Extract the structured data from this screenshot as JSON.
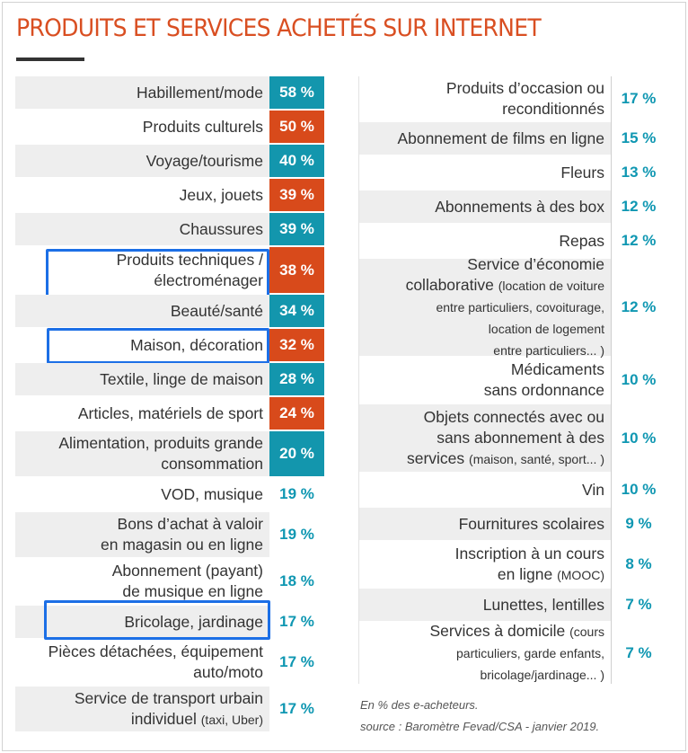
{
  "chart_data": {
    "type": "table",
    "title": "PRODUITS ET SERVICES ACHETÉS SUR INTERNET",
    "value_suffix": " %",
    "colors": {
      "teal": "#1396ad",
      "orange": "#d84a1b",
      "title": "#d94f22",
      "text_value": "#0f97b2"
    },
    "left_column": [
      {
        "label": "Habillement/mode",
        "value": 58,
        "value_text": "58 %",
        "bar_color": "teal",
        "shaded": true
      },
      {
        "label": "Produits culturels",
        "value": 50,
        "value_text": "50 %",
        "bar_color": "orange",
        "shaded": false
      },
      {
        "label": "Voyage/tourisme",
        "value": 40,
        "value_text": "40 %",
        "bar_color": "teal",
        "shaded": true
      },
      {
        "label": "Jeux, jouets",
        "value": 39,
        "value_text": "39 %",
        "bar_color": "orange",
        "shaded": false
      },
      {
        "label": "Chaussures",
        "value": 39,
        "value_text": "39 %",
        "bar_color": "teal",
        "shaded": true
      },
      {
        "label": "Produits techniques /\nélectroménager",
        "value": 38,
        "value_text": "38 %",
        "bar_color": "orange",
        "shaded": false,
        "highlighted": true
      },
      {
        "label": "Beauté/santé",
        "value": 34,
        "value_text": "34 %",
        "bar_color": "teal",
        "shaded": true
      },
      {
        "label": "Maison, décoration",
        "value": 32,
        "value_text": "32 %",
        "bar_color": "orange",
        "shaded": false,
        "highlighted": true
      },
      {
        "label": "Textile, linge de maison",
        "value": 28,
        "value_text": "28 %",
        "bar_color": "teal",
        "shaded": true
      },
      {
        "label": "Articles, matériels de sport",
        "value": 24,
        "value_text": "24 %",
        "bar_color": "orange",
        "shaded": false
      },
      {
        "label": "Alimentation, produits grande\nconsommation",
        "value": 20,
        "value_text": "20 %",
        "bar_color": "teal",
        "shaded": true
      },
      {
        "label": "VOD, musique",
        "value": 19,
        "value_text": "19 %",
        "shaded": false
      },
      {
        "label": "Bons d’achat à valoir\nen magasin ou en ligne",
        "value": 19,
        "value_text": "19 %",
        "shaded": true
      },
      {
        "label": "Abonnement (payant)\nde musique en ligne",
        "value": 18,
        "value_text": "18 %",
        "shaded": false
      },
      {
        "label": "Bricolage, jardinage",
        "value": 17,
        "value_text": "17 %",
        "shaded": true,
        "highlighted": true
      },
      {
        "label": "Pièces détachées, équipement\nauto/moto",
        "value": 17,
        "value_text": "17 %",
        "shaded": false
      },
      {
        "label": "Service de transport urbain\nindividuel",
        "label_note": "(taxi, Uber)",
        "value": 17,
        "value_text": "17 %",
        "shaded": true
      }
    ],
    "right_column": [
      {
        "label": "Produits d’occasion ou\nreconditionnés",
        "value": 17,
        "value_text": "17 %",
        "shaded": false
      },
      {
        "label": "Abonnement de films en ligne",
        "value": 15,
        "value_text": "15 %",
        "shaded": true
      },
      {
        "label": "Fleurs",
        "value": 13,
        "value_text": "13 %",
        "shaded": false
      },
      {
        "label": "Abonnements à des box",
        "value": 12,
        "value_text": "12 %",
        "shaded": true
      },
      {
        "label": "Repas",
        "value": 12,
        "value_text": "12 %",
        "shaded": false
      },
      {
        "label": "Service d’économie\ncollaborative",
        "label_note": "(location de voiture\nentre particuliers, covoiturage,\nlocation de logement\nentre particuliers... )",
        "value": 12,
        "value_text": "12 %",
        "shaded": true
      },
      {
        "label": "Médicaments\nsans ordonnance",
        "value": 10,
        "value_text": "10 %",
        "shaded": false
      },
      {
        "label": "Objets connectés avec ou\nsans abonnement à des\nservices",
        "label_note": "(maison, santé, sport... )",
        "value": 10,
        "value_text": "10 %",
        "shaded": true
      },
      {
        "label": "Vin",
        "value": 10,
        "value_text": "10 %",
        "shaded": false
      },
      {
        "label": "Fournitures scolaires",
        "value": 9,
        "value_text": "9 %",
        "shaded": true
      },
      {
        "label": "Inscription à un cours\nen ligne",
        "label_note": "(MOOC)",
        "value": 8,
        "value_text": "8 %",
        "shaded": false
      },
      {
        "label": "Lunettes, lentilles",
        "value": 7,
        "value_text": "7 %",
        "shaded": true
      },
      {
        "label": "Services à domicile",
        "label_note": "(cours\nparticuliers, garde enfants,\nbricolage/jardinage... )",
        "value": 7,
        "value_text": "7 %",
        "shaded": false
      }
    ],
    "footnote": "En % des e-acheteurs.",
    "source": "source : Baromètre Fevad/CSA - janvier 2019."
  }
}
